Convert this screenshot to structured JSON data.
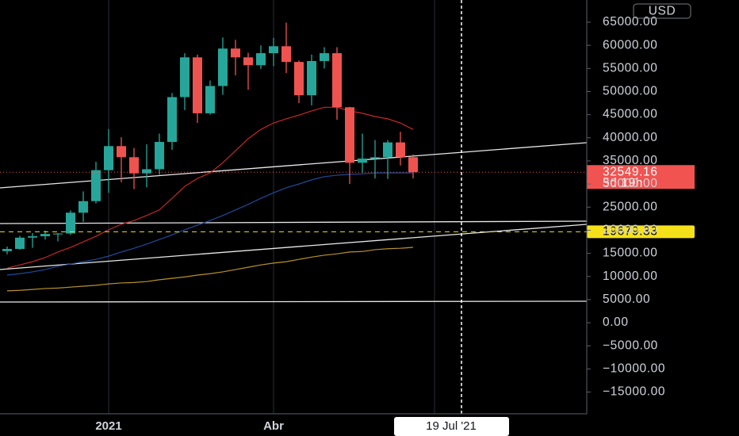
{
  "chart_data": {
    "type": "candlestick",
    "currency": "USD",
    "categories": [
      null,
      null,
      null,
      null,
      null,
      null,
      null,
      null,
      "2021",
      null,
      null,
      null,
      null,
      null,
      null,
      null,
      null,
      null,
      null,
      null,
      null,
      "Abr",
      null,
      null,
      null,
      null,
      null,
      null,
      null,
      null,
      null,
      null,
      null
    ],
    "open": [
      15480,
      15960,
      18400,
      18700,
      19100,
      19300,
      23800,
      26300,
      33000,
      38200,
      35800,
      32300,
      33200,
      39100,
      48800,
      57400,
      45300,
      51200,
      59300,
      57400,
      55700,
      58300,
      59800,
      56400,
      49200,
      56600,
      58300,
      46600,
      34600,
      35500,
      35800,
      39000,
      35800
    ],
    "high": [
      16480,
      18800,
      19400,
      19900,
      19400,
      24300,
      28400,
      34800,
      41900,
      40100,
      37800,
      38600,
      40900,
      49700,
      58300,
      58000,
      52400,
      61700,
      61200,
      58400,
      60000,
      61600,
      64900,
      56700,
      58000,
      59600,
      59600,
      46700,
      40900,
      39500,
      39500,
      41300,
      36400
    ],
    "low": [
      14800,
      15800,
      16200,
      18000,
      17600,
      19000,
      21800,
      25800,
      28100,
      30400,
      28900,
      29300,
      32000,
      37400,
      46000,
      43200,
      45000,
      49300,
      53500,
      50400,
      54900,
      55500,
      54000,
      47500,
      47000,
      55000,
      43900,
      30000,
      32400,
      31200,
      31100,
      34000,
      31200
    ],
    "close": [
      15960,
      18400,
      18700,
      19200,
      19300,
      23800,
      26300,
      33000,
      38200,
      35800,
      32300,
      33200,
      39100,
      48800,
      57400,
      45300,
      51200,
      59300,
      57400,
      55700,
      58300,
      59800,
      56400,
      49200,
      56600,
      58300,
      46600,
      34600,
      35500,
      35800,
      39000,
      35800,
      32549.16
    ],
    "up_color": "#26a69a",
    "down_color": "#ef5350",
    "overlays": [
      {
        "color": "#c62828",
        "values": [
          11800,
          12500,
          13200,
          14100,
          15300,
          16300,
          17500,
          18700,
          20100,
          21300,
          22100,
          23200,
          24400,
          26900,
          29500,
          31200,
          32400,
          34600,
          37200,
          39800,
          41800,
          43200,
          44100,
          44900,
          45800,
          46600,
          46600,
          45800,
          45300,
          44600,
          44100,
          43200,
          41800
        ]
      },
      {
        "color": "#1e4b9c",
        "values": [
          10300,
          10600,
          11000,
          11500,
          12200,
          12700,
          13200,
          13700,
          14400,
          15300,
          16100,
          17000,
          18000,
          19000,
          20100,
          21100,
          22100,
          23200,
          24400,
          25600,
          26900,
          28100,
          29200,
          30000,
          30900,
          31600,
          31900,
          32100,
          32200,
          32400,
          32400,
          32400,
          32400
        ]
      },
      {
        "color": "#b8912a",
        "values": [
          6900,
          7000,
          7200,
          7400,
          7500,
          7700,
          7900,
          8100,
          8400,
          8600,
          8700,
          8900,
          9300,
          9600,
          9900,
          10300,
          10600,
          11000,
          11500,
          12000,
          12500,
          12900,
          13200,
          13700,
          14200,
          14600,
          14900,
          15300,
          15400,
          15800,
          16000,
          16100,
          16300
        ]
      }
    ],
    "ylim": [
      -19700,
      69800
    ],
    "yticks": [
      {
        "value": -15000,
        "label": "−15000.00"
      },
      {
        "value": -10000,
        "label": "−10000.00"
      },
      {
        "value": -5000,
        "label": "−5000.00"
      },
      {
        "value": 0,
        "label": "0.00"
      },
      {
        "value": 5000,
        "label": "5000.00"
      },
      {
        "value": 10000,
        "label": "10000.00"
      },
      {
        "value": 15000,
        "label": "15000.00"
      },
      {
        "value": 20000,
        "label": "20000.00"
      },
      {
        "value": 25000,
        "label": "25000.00"
      },
      {
        "value": 30000,
        "label": "30000.00"
      },
      {
        "value": 35000,
        "label": "35000.00"
      },
      {
        "value": 40000,
        "label": "40000.00"
      },
      {
        "value": 45000,
        "label": "45000.00"
      },
      {
        "value": 50000,
        "label": "50000.00"
      },
      {
        "value": 55000,
        "label": "55000.00"
      },
      {
        "value": 60000,
        "label": "60000.00"
      },
      {
        "value": 65000,
        "label": "65000.00"
      }
    ],
    "last_price": {
      "value": 32549.16,
      "label": "32549.16",
      "countdown": "5d 19h",
      "color": "#f05350"
    },
    "price_line": {
      "value": 19679.33,
      "label": "19679.33",
      "color": "#f5e11a"
    },
    "crosshair_label": "19 Jul '21"
  }
}
